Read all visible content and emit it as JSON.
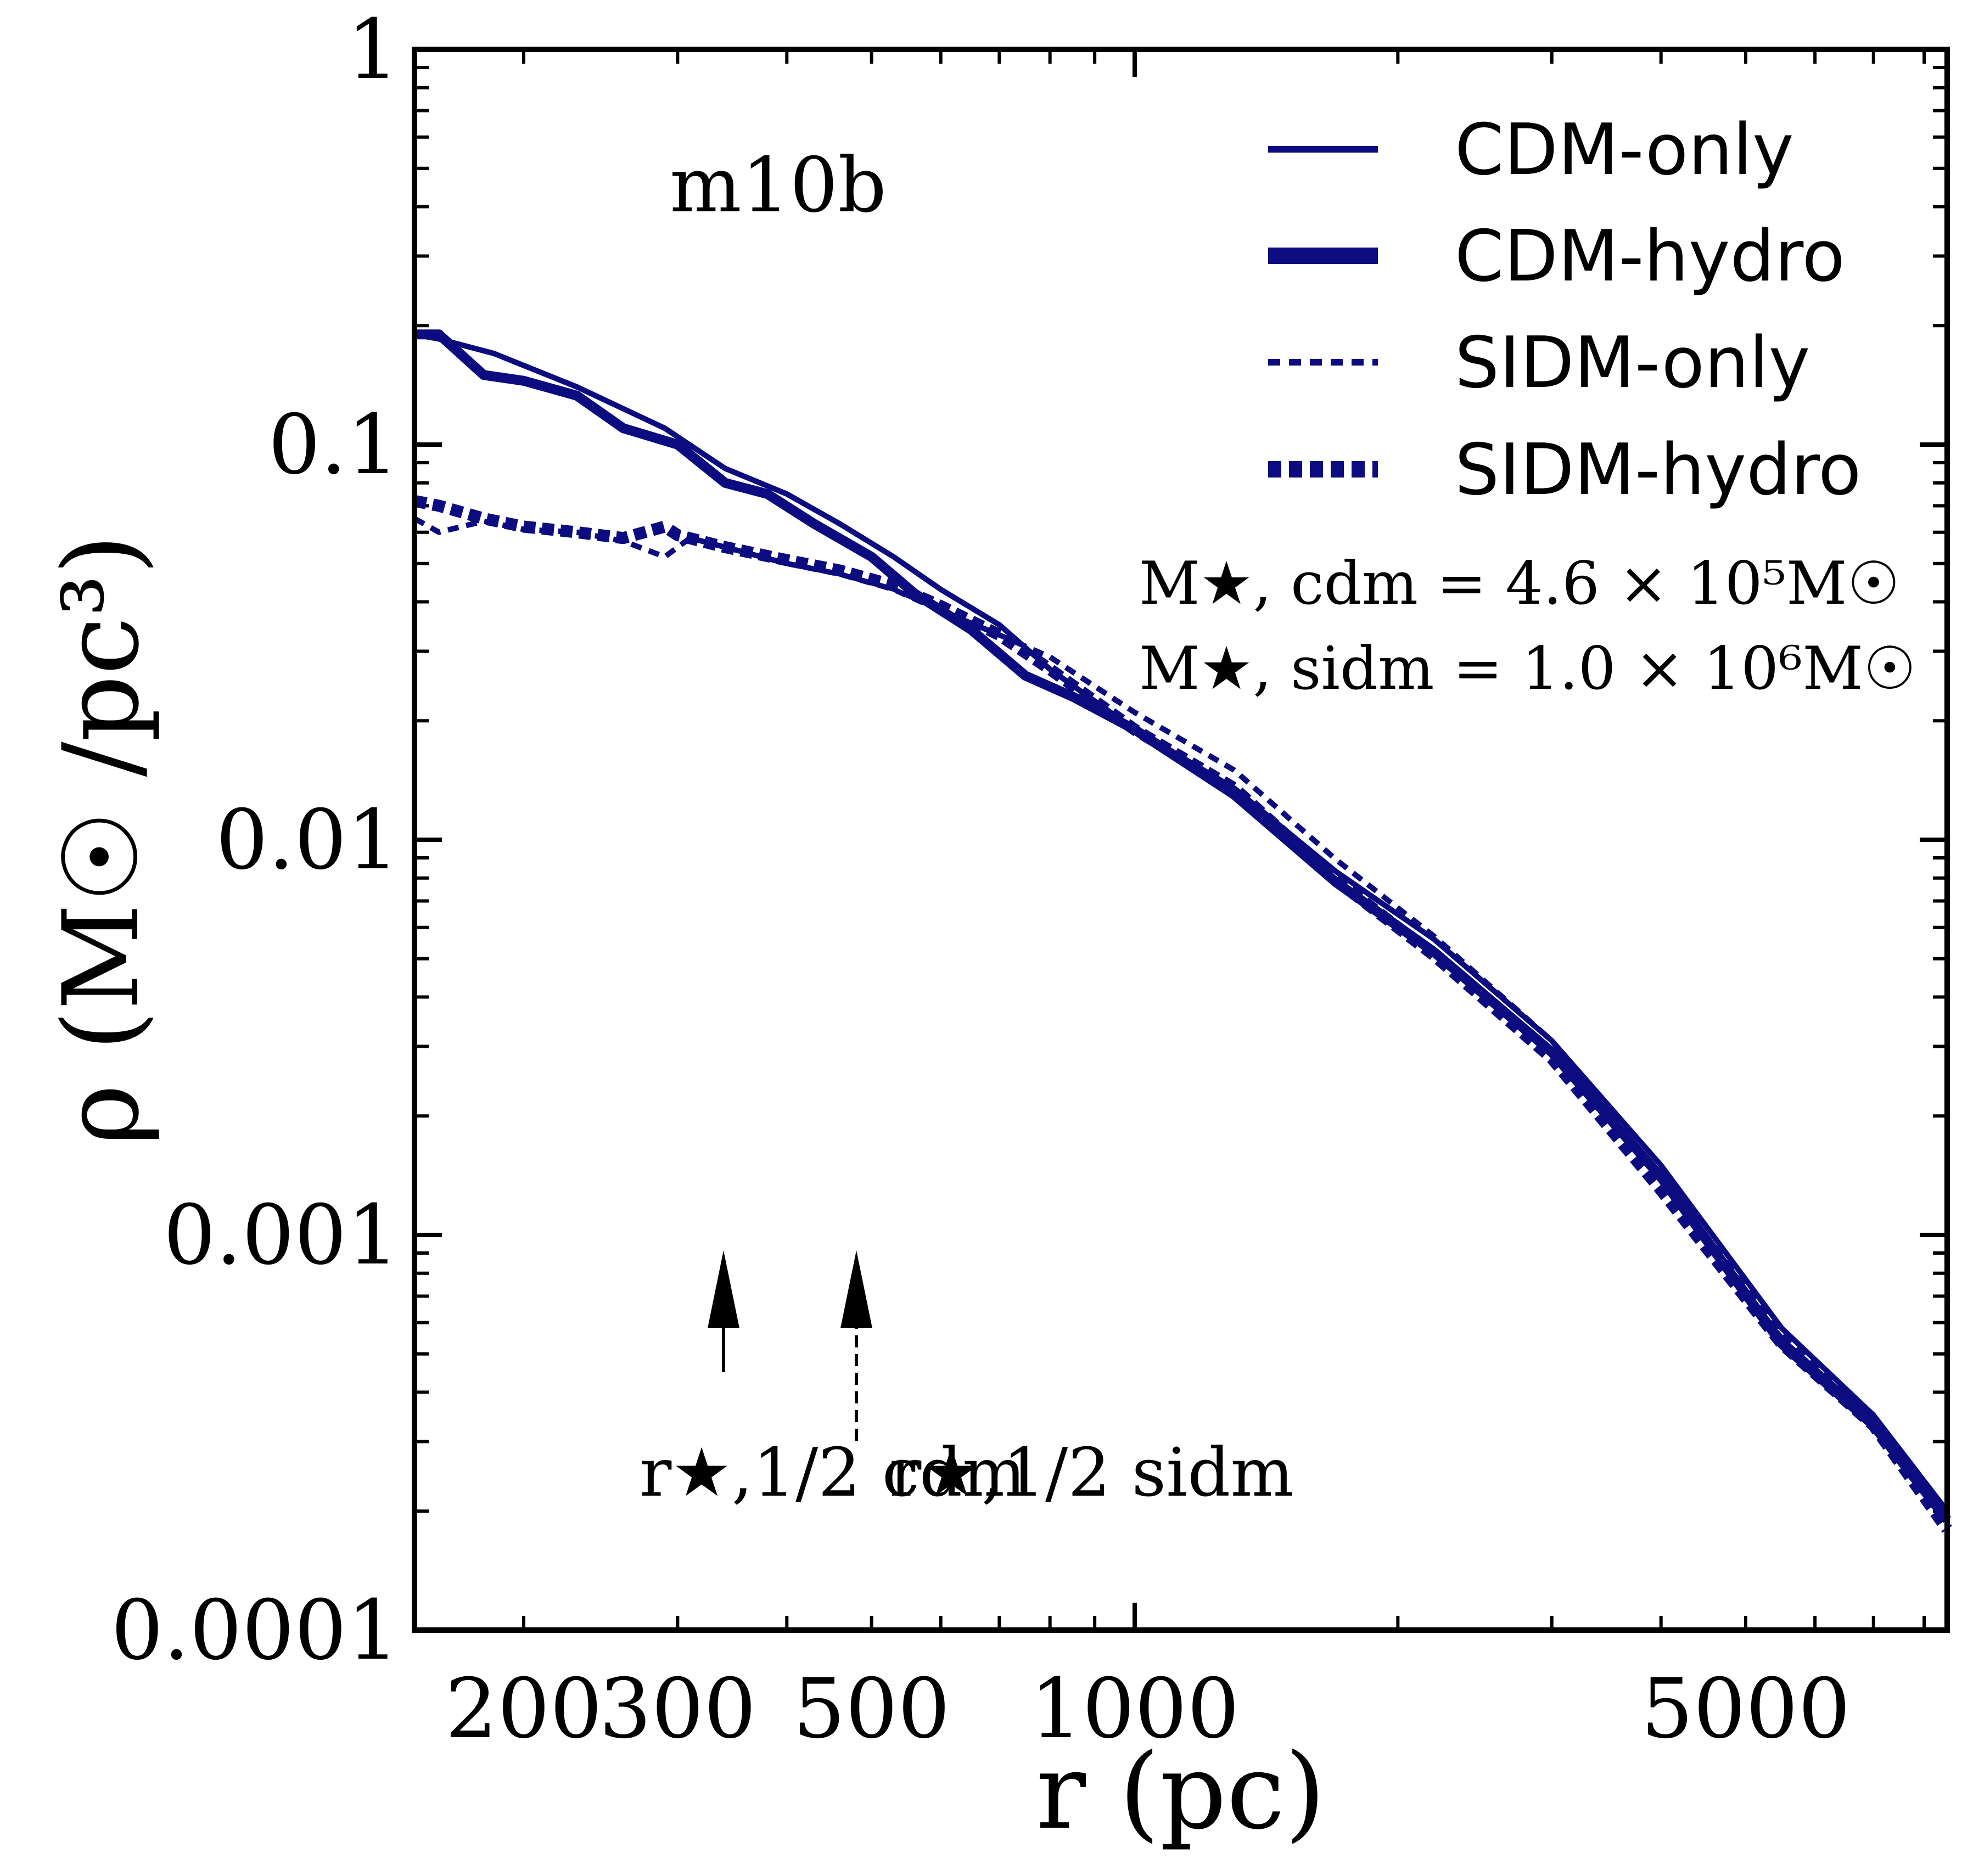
{
  "chart_data": {
    "type": "line",
    "title": "",
    "panel_label": "m10b",
    "xlabel": "r (pc)",
    "ylabel": "ρ (M☉ /pc³)",
    "xscale": "log",
    "yscale": "log",
    "xlim": [
      150,
      8500
    ],
    "ylim": [
      0.0001,
      1
    ],
    "xticks": [
      {
        "value": 200,
        "label": "200"
      },
      {
        "value": 300,
        "label": "300"
      },
      {
        "value": 500,
        "label": "500"
      },
      {
        "value": 1000,
        "label": "1000"
      },
      {
        "value": 5000,
        "label": "5000"
      }
    ],
    "yticks": [
      {
        "value": 1,
        "label": "1"
      },
      {
        "value": 0.1,
        "label": "0.1"
      },
      {
        "value": 0.01,
        "label": "0.01"
      },
      {
        "value": 0.001,
        "label": "0.001"
      },
      {
        "value": 0.0001,
        "label": "0.0001"
      }
    ],
    "grid": false,
    "legend_position": "top-right",
    "series": [
      {
        "name": "CDM-only",
        "style": "solid-thin",
        "color": "#0c0c80",
        "x": [
          150,
          160,
          185,
          230,
          290,
          340,
          400,
          460,
          530,
          600,
          700,
          800,
          1000,
          1300,
          1700,
          2200,
          3000,
          4000,
          5500,
          7000,
          8500
        ],
        "y": [
          0.19,
          0.185,
          0.17,
          0.14,
          0.11,
          0.087,
          0.075,
          0.063,
          0.052,
          0.043,
          0.035,
          0.027,
          0.019,
          0.0135,
          0.0083,
          0.0056,
          0.0031,
          0.0015,
          0.00058,
          0.00035,
          0.0002
        ]
      },
      {
        "name": "CDM-hydro",
        "style": "solid-thick",
        "color": "#0c0c80",
        "x": [
          150,
          160,
          180,
          200,
          230,
          260,
          300,
          340,
          380,
          430,
          500,
          560,
          650,
          750,
          850,
          1000,
          1300,
          1700,
          2200,
          3000,
          4000,
          5500,
          7000,
          8500
        ],
        "y": [
          0.19,
          0.19,
          0.15,
          0.145,
          0.133,
          0.11,
          0.1,
          0.08,
          0.075,
          0.063,
          0.052,
          0.042,
          0.034,
          0.026,
          0.023,
          0.019,
          0.013,
          0.0078,
          0.0052,
          0.0029,
          0.0014,
          0.00053,
          0.00033,
          0.00019
        ]
      },
      {
        "name": "SIDM-only",
        "style": "dotted-thin",
        "color": "#0c0c80",
        "x": [
          150,
          160,
          180,
          200,
          230,
          260,
          290,
          310,
          340,
          400,
          460,
          530,
          600,
          700,
          800,
          1000,
          1300,
          1700,
          2200,
          3000,
          4000,
          5500,
          7000,
          8500
        ],
        "y": [
          0.065,
          0.06,
          0.064,
          0.061,
          0.06,
          0.057,
          0.052,
          0.058,
          0.055,
          0.05,
          0.047,
          0.043,
          0.038,
          0.033,
          0.029,
          0.021,
          0.015,
          0.0089,
          0.0057,
          0.0031,
          0.0014,
          0.00056,
          0.00034,
          0.00019
        ]
      },
      {
        "name": "SIDM-hydro",
        "style": "dotted-thick",
        "color": "#0c0c80",
        "x": [
          150,
          160,
          180,
          200,
          230,
          260,
          290,
          300,
          340,
          400,
          460,
          530,
          600,
          700,
          800,
          1000,
          1300,
          1700,
          2200,
          3000,
          4000,
          5500,
          7000,
          8500
        ],
        "y": [
          0.072,
          0.07,
          0.065,
          0.062,
          0.06,
          0.058,
          0.062,
          0.059,
          0.055,
          0.051,
          0.048,
          0.044,
          0.039,
          0.033,
          0.027,
          0.019,
          0.0135,
          0.0079,
          0.0051,
          0.0028,
          0.0013,
          0.00053,
          0.00033,
          0.00018
        ]
      }
    ],
    "annotations": {
      "stellar_mass_cdm": "M★, cdm = 4.6 × 10⁵M☉",
      "stellar_mass_sidm": "M★, sidm = 1.0 × 10⁶M☉",
      "arrow_cdm": {
        "x": 345,
        "label": "r★,1/2 cdm",
        "style": "solid"
      },
      "arrow_sidm": {
        "x": 505,
        "label": "r★,1/2 sidm",
        "style": "dashed"
      }
    }
  }
}
